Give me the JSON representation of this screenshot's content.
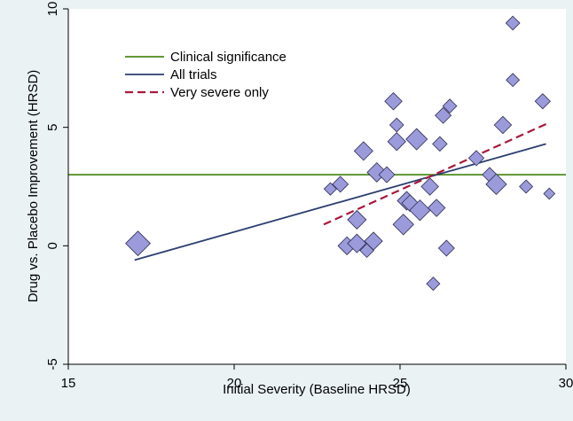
{
  "chart_data": {
    "type": "scatter",
    "title": "",
    "xlabel": "Initial Severity (Baseline HRSD)",
    "ylabel": "Drug vs. Placebo Improvement (HRSD)",
    "xlim": [
      15,
      30
    ],
    "ylim": [
      -5,
      10
    ],
    "x_ticks": [
      "15",
      "20",
      "25",
      "30"
    ],
    "y_ticks": [
      "-5",
      "0",
      "5",
      "10"
    ],
    "grid": false,
    "legend_position": "top-left",
    "legend": [
      {
        "label": "Clinical significance",
        "color": "#4e8a1e",
        "style": "solid"
      },
      {
        "label": "All trials",
        "color": "#2c3e70",
        "style": "solid"
      },
      {
        "label": "Very severe only",
        "color": "#a8193a",
        "style": "dashed"
      }
    ],
    "marker": {
      "shape": "diamond",
      "fill": "#9b9adb",
      "stroke": "#2d2d52"
    },
    "points": [
      {
        "x": 17.1,
        "y": 0.1,
        "weight": 2.6
      },
      {
        "x": 22.9,
        "y": 2.4,
        "weight": 0.8
      },
      {
        "x": 23.2,
        "y": 2.6,
        "weight": 1.3
      },
      {
        "x": 23.4,
        "y": 0.0,
        "weight": 1.6
      },
      {
        "x": 23.7,
        "y": 1.1,
        "weight": 1.7
      },
      {
        "x": 23.7,
        "y": 0.1,
        "weight": 1.7
      },
      {
        "x": 23.9,
        "y": 4.0,
        "weight": 1.7
      },
      {
        "x": 24.0,
        "y": -0.2,
        "weight": 1.0
      },
      {
        "x": 24.2,
        "y": 0.2,
        "weight": 1.6
      },
      {
        "x": 24.3,
        "y": 3.1,
        "weight": 1.8
      },
      {
        "x": 24.6,
        "y": 3.0,
        "weight": 1.3
      },
      {
        "x": 24.8,
        "y": 6.1,
        "weight": 1.5
      },
      {
        "x": 24.9,
        "y": 5.1,
        "weight": 1.0
      },
      {
        "x": 24.9,
        "y": 4.4,
        "weight": 1.6
      },
      {
        "x": 25.1,
        "y": 0.9,
        "weight": 2.0
      },
      {
        "x": 25.2,
        "y": 1.9,
        "weight": 1.7
      },
      {
        "x": 25.3,
        "y": 1.8,
        "weight": 1.4
      },
      {
        "x": 25.5,
        "y": 4.5,
        "weight": 2.1
      },
      {
        "x": 25.6,
        "y": 1.5,
        "weight": 2.0
      },
      {
        "x": 25.9,
        "y": 2.5,
        "weight": 1.5
      },
      {
        "x": 26.0,
        "y": -1.6,
        "weight": 0.9
      },
      {
        "x": 26.1,
        "y": 1.6,
        "weight": 1.5
      },
      {
        "x": 26.2,
        "y": 4.3,
        "weight": 1.1
      },
      {
        "x": 26.3,
        "y": 5.5,
        "weight": 1.3
      },
      {
        "x": 26.4,
        "y": -0.1,
        "weight": 1.3
      },
      {
        "x": 26.5,
        "y": 5.9,
        "weight": 1.0
      },
      {
        "x": 27.3,
        "y": 3.7,
        "weight": 1.2
      },
      {
        "x": 27.7,
        "y": 3.0,
        "weight": 1.1
      },
      {
        "x": 27.9,
        "y": 2.6,
        "weight": 2.0
      },
      {
        "x": 28.1,
        "y": 5.1,
        "weight": 1.5
      },
      {
        "x": 28.4,
        "y": 9.4,
        "weight": 1.0
      },
      {
        "x": 28.4,
        "y": 7.0,
        "weight": 0.9
      },
      {
        "x": 28.8,
        "y": 2.5,
        "weight": 0.9
      },
      {
        "x": 29.3,
        "y": 6.1,
        "weight": 1.2
      },
      {
        "x": 29.5,
        "y": 2.2,
        "weight": 0.6
      }
    ],
    "lines": [
      {
        "name": "Clinical significance",
        "x": [
          15,
          30
        ],
        "y": [
          3.0,
          3.0
        ],
        "color": "#4e8a1e",
        "style": "solid"
      },
      {
        "name": "All trials",
        "x": [
          17.0,
          29.4
        ],
        "y": [
          -0.6,
          4.3
        ],
        "color": "#2c3e70",
        "style": "solid"
      },
      {
        "name": "Very severe only",
        "x": [
          22.7,
          29.5
        ],
        "y": [
          0.9,
          5.2
        ],
        "color": "#a8193a",
        "style": "dashed"
      }
    ]
  }
}
